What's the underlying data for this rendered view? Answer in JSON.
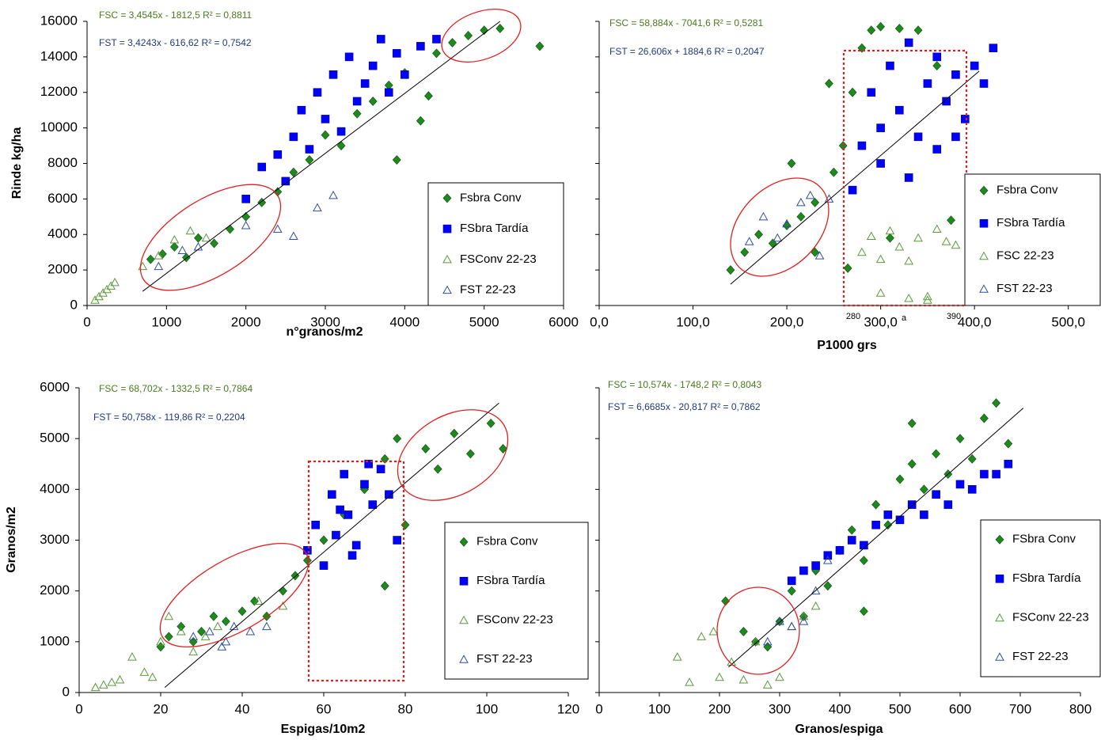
{
  "chart_data": [
    {
      "type": "scatter",
      "x_label": "n°granos/m2",
      "y_label": "Rinde kg/ha",
      "xlim": [
        0,
        6000
      ],
      "ylim": [
        0,
        16000
      ],
      "xticks": [
        0,
        1000,
        2000,
        3000,
        4000,
        5000,
        6000
      ],
      "yticks": [
        0,
        2000,
        4000,
        6000,
        8000,
        10000,
        12000,
        14000,
        16000
      ],
      "ytick_labels": true,
      "annotations": [
        {
          "text": "FSC = 3,4545x - 1812,5 R² = 0,8811",
          "color": "#4a7a1e"
        },
        {
          "text": "FST = 3,4243x - 616,62 R² = 0,7542",
          "color": "#1f3a7a"
        }
      ],
      "trend": {
        "x": [
          700,
          5200
        ],
        "y": [
          800,
          16000
        ]
      },
      "series": [
        {
          "name": "Fsbra Conv",
          "color": "#1e8a1e",
          "marker": "diamond",
          "x": [
            800,
            950,
            1100,
            1250,
            1400,
            1600,
            1800,
            2000,
            2200,
            2400,
            2600,
            2800,
            3000,
            3200,
            3400,
            3600,
            3800,
            4000,
            4200,
            4400,
            4600,
            4800,
            5000,
            5200,
            5700,
            3900,
            4300
          ],
          "values": [
            2600,
            2900,
            3300,
            2700,
            3800,
            3500,
            4300,
            5000,
            5800,
            6400,
            7500,
            8200,
            9600,
            9000,
            10800,
            11500,
            12400,
            13100,
            10400,
            14200,
            14800,
            15200,
            15500,
            15600,
            14600,
            8200,
            11800
          ]
        },
        {
          "name": "FSbra Tardía",
          "color": "#0000ff",
          "marker": "square",
          "x": [
            2000,
            2200,
            2400,
            2500,
            2600,
            2700,
            2800,
            2900,
            3000,
            3100,
            3200,
            3300,
            3400,
            3500,
            3600,
            3700,
            3800,
            3900,
            4000,
            4200,
            4400
          ],
          "values": [
            6000,
            7800,
            8500,
            7000,
            9500,
            11000,
            8800,
            12000,
            10500,
            13000,
            9800,
            14000,
            11500,
            12500,
            13500,
            15000,
            12000,
            14200,
            13000,
            14600,
            15000
          ]
        },
        {
          "name": "FSConv 22-23",
          "color": "#5a9a3c",
          "marker": "triangle",
          "x": [
            100,
            150,
            200,
            250,
            300,
            350,
            700,
            900,
            1100,
            1300,
            1500
          ],
          "values": [
            300,
            500,
            700,
            900,
            1100,
            1300,
            2200,
            2800,
            3700,
            4200,
            3800
          ]
        },
        {
          "name": "FST 22-23",
          "color": "#2f4f9f",
          "marker": "triangle",
          "x": [
            900,
            1200,
            1400,
            2000,
            2400,
            2600,
            2900,
            3100
          ],
          "values": [
            2200,
            3100,
            3300,
            4500,
            4300,
            3900,
            5500,
            6200
          ]
        }
      ]
    },
    {
      "type": "scatter",
      "x_label": "P1000 grs",
      "xlim": [
        0,
        534
      ],
      "ylim": [
        0,
        16000
      ],
      "xticks": [
        {
          "value": 0,
          "label": "0,0"
        },
        {
          "value": 100,
          "label": "100,0"
        },
        {
          "value": 200,
          "label": "200,0"
        },
        {
          "value": 300,
          "label": "300,0"
        },
        {
          "value": 400,
          "label": "400,0"
        },
        {
          "value": 500,
          "label": "500,0"
        }
      ],
      "yticks": [
        0,
        2000,
        4000,
        6000,
        8000,
        10000,
        12000,
        14000,
        16000
      ],
      "ytick_labels": false,
      "annotations": [
        {
          "text": "FSC = 58,884x - 7041,6 R² = 0,5281",
          "color": "#4a7a1e"
        },
        {
          "text": "FST = 26,606x + 1884,6 R² = 0,2047",
          "color": "#1f3a7a"
        }
      ],
      "notes": [
        "280",
        "a",
        "390"
      ],
      "trend": {
        "x": [
          140,
          405
        ],
        "y": [
          1200,
          13200
        ]
      },
      "series": [
        {
          "name": "Fsbra Conv",
          "color": "#1e8a1e",
          "marker": "diamond",
          "x": [
            140,
            155,
            170,
            185,
            200,
            215,
            230,
            250,
            260,
            270,
            280,
            290,
            300,
            320,
            340,
            360,
            375,
            265,
            310,
            230,
            205,
            245
          ],
          "values": [
            2000,
            3000,
            4000,
            3500,
            4500,
            5000,
            5800,
            7500,
            9000,
            12000,
            14500,
            15500,
            15700,
            15600,
            15500,
            13500,
            4800,
            2100,
            3800,
            3000,
            8000,
            12500
          ]
        },
        {
          "name": "FSbra Tardía",
          "color": "#0000ff",
          "marker": "square",
          "x": [
            270,
            280,
            290,
            300,
            310,
            320,
            330,
            340,
            350,
            360,
            370,
            380,
            390,
            400,
            410,
            420,
            300,
            330,
            360,
            380
          ],
          "values": [
            6500,
            9000,
            12000,
            10000,
            13500,
            11000,
            14800,
            9500,
            12500,
            14000,
            11500,
            13000,
            10500,
            13500,
            12500,
            14500,
            8000,
            7200,
            8800,
            9500
          ]
        },
        {
          "name": "FSC 22-23",
          "color": "#5a9a3c",
          "marker": "triangle",
          "x": [
            280,
            290,
            300,
            310,
            320,
            330,
            340,
            350,
            360,
            370,
            380,
            300,
            330,
            350
          ],
          "values": [
            3000,
            3900,
            2600,
            4200,
            3300,
            2500,
            3800,
            300,
            4300,
            3600,
            3400,
            700,
            400,
            500
          ]
        },
        {
          "name": "FST 22-23",
          "color": "#2f4f9f",
          "marker": "triangle",
          "x": [
            160,
            175,
            190,
            200,
            215,
            225,
            235,
            245
          ],
          "values": [
            3600,
            5000,
            3800,
            4600,
            5800,
            6200,
            2800,
            6000
          ]
        }
      ]
    },
    {
      "type": "scatter",
      "x_label": "Espigas/10m2",
      "y_label": "Granos/m2",
      "xlim": [
        0,
        120
      ],
      "ylim": [
        0,
        6000
      ],
      "xticks": [
        0,
        20,
        40,
        60,
        80,
        100,
        120
      ],
      "yticks": [
        0,
        1000,
        2000,
        3000,
        4000,
        5000,
        6000
      ],
      "ytick_labels": true,
      "annotations": [
        {
          "text": "FSC = 68,702x - 1332,5 R² = 0,7864",
          "color": "#4a7a1e"
        },
        {
          "text": "FST = 50,758x - 119,86 R² = 0,2204",
          "color": "#1f3a7a"
        }
      ],
      "trend": {
        "x": [
          21,
          103
        ],
        "y": [
          100,
          5700
        ]
      },
      "series": [
        {
          "name": "Fsbra Conv",
          "color": "#1e8a1e",
          "marker": "diamond",
          "x": [
            20,
            22,
            25,
            28,
            30,
            33,
            36,
            40,
            43,
            46,
            50,
            53,
            56,
            60,
            65,
            70,
            75,
            78,
            80,
            85,
            88,
            92,
            96,
            101,
            104,
            75
          ],
          "values": [
            900,
            1100,
            1300,
            1000,
            1200,
            1500,
            1400,
            1600,
            1800,
            1500,
            2000,
            2300,
            2600,
            3000,
            3500,
            4000,
            4600,
            5000,
            3300,
            4800,
            4400,
            5100,
            4700,
            5300,
            4800,
            2100
          ]
        },
        {
          "name": "FSbra Tardía",
          "color": "#0000ff",
          "marker": "square",
          "x": [
            56,
            58,
            60,
            62,
            63,
            65,
            66,
            68,
            70,
            72,
            74,
            76,
            78,
            64,
            67,
            71
          ],
          "values": [
            2800,
            3300,
            2500,
            3900,
            3100,
            4300,
            3500,
            2900,
            4100,
            3700,
            4400,
            3900,
            3000,
            3600,
            2700,
            4500
          ]
        },
        {
          "name": "FSConv 22-23",
          "color": "#5a9a3c",
          "marker": "triangle",
          "x": [
            4,
            6,
            8,
            10,
            13,
            16,
            18,
            20,
            22,
            25,
            28,
            31,
            34,
            44,
            50
          ],
          "values": [
            100,
            150,
            200,
            250,
            700,
            400,
            300,
            1000,
            1500,
            1200,
            800,
            1100,
            1300,
            1800,
            1700
          ]
        },
        {
          "name": "FST 22-23",
          "color": "#2f4f9f",
          "marker": "triangle",
          "x": [
            28,
            32,
            35,
            38,
            42,
            46,
            36
          ],
          "values": [
            1100,
            1200,
            900,
            1300,
            1200,
            1300,
            1000
          ]
        }
      ]
    },
    {
      "type": "scatter",
      "x_label": "Granos/espiga",
      "xlim": [
        0,
        800
      ],
      "ylim": [
        0,
        6000
      ],
      "xticks": [
        0,
        100,
        200,
        300,
        400,
        500,
        600,
        700,
        800
      ],
      "yticks": [
        0,
        1000,
        2000,
        3000,
        4000,
        5000,
        6000
      ],
      "ytick_labels": false,
      "annotations": [
        {
          "text": "FSC = 10,574x - 1748,2 R² = 0,8043",
          "color": "#4a7a1e"
        },
        {
          "text": "FST = 6,6685x - 20,817 R² = 0,7862",
          "color": "#1f3a7a"
        }
      ],
      "trend": {
        "x": [
          215,
          705
        ],
        "y": [
          500,
          5600
        ]
      },
      "series": [
        {
          "name": "FSbra Conv",
          "color": "#1e8a1e",
          "marker": "diamond",
          "x": [
            210,
            240,
            260,
            280,
            300,
            320,
            340,
            360,
            380,
            400,
            420,
            440,
            460,
            480,
            500,
            520,
            540,
            560,
            580,
            600,
            620,
            640,
            660,
            680,
            440,
            520
          ],
          "values": [
            1800,
            1200,
            1000,
            900,
            1400,
            2000,
            1500,
            2400,
            2100,
            2800,
            3200,
            2600,
            3700,
            3300,
            4200,
            4500,
            4000,
            4700,
            4300,
            5000,
            4600,
            5400,
            5700,
            4900,
            1600,
            5300
          ]
        },
        {
          "name": "FSbra Tardía",
          "color": "#0000ff",
          "marker": "square",
          "x": [
            320,
            340,
            360,
            380,
            400,
            420,
            440,
            460,
            480,
            500,
            520,
            540,
            560,
            580,
            600,
            620,
            640,
            660,
            680
          ],
          "values": [
            2200,
            2400,
            2500,
            2700,
            2800,
            3000,
            2900,
            3300,
            3500,
            3400,
            3700,
            3500,
            3900,
            3700,
            4100,
            4000,
            4300,
            4300,
            4500
          ]
        },
        {
          "name": "FSConv 22-23",
          "color": "#5a9a3c",
          "marker": "triangle",
          "x": [
            130,
            150,
            170,
            190,
            200,
            220,
            240,
            260,
            280,
            300,
            320,
            340,
            360
          ],
          "values": [
            700,
            200,
            1100,
            1200,
            300,
            600,
            250,
            1000,
            150,
            300,
            1300,
            1500,
            1700
          ]
        },
        {
          "name": "FST 22-23",
          "color": "#2f4f9f",
          "marker": "triangle",
          "x": [
            280,
            300,
            320,
            340,
            360,
            380
          ],
          "values": [
            1000,
            1400,
            1300,
            1400,
            2000,
            2600
          ]
        }
      ]
    }
  ]
}
